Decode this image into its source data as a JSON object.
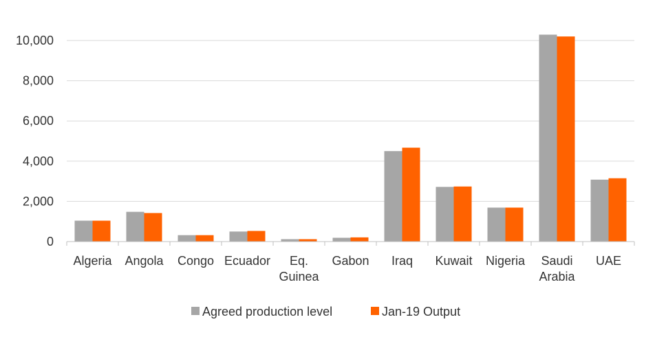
{
  "chart_data": {
    "type": "bar",
    "title": "",
    "xlabel": "",
    "ylabel": "",
    "categories": [
      [
        "Algeria"
      ],
      [
        "Angola"
      ],
      [
        "Congo"
      ],
      [
        "Ecuador"
      ],
      [
        "Eq.",
        "Guinea"
      ],
      [
        "Gabon"
      ],
      [
        "Iraq"
      ],
      [
        "Kuwait"
      ],
      [
        "Nigeria"
      ],
      [
        "Saudi",
        "Arabia"
      ],
      [
        "UAE"
      ]
    ],
    "series": [
      {
        "name": "Agreed production level",
        "color": "#a6a6a6",
        "values": [
          1040,
          1480,
          320,
          500,
          120,
          190,
          4500,
          2720,
          1690,
          10290,
          3080
        ]
      },
      {
        "name": "Jan-19 Output",
        "color": "#ff6200",
        "values": [
          1040,
          1420,
          320,
          530,
          120,
          210,
          4670,
          2740,
          1690,
          10200,
          3150
        ]
      }
    ],
    "ylim": [
      0,
      10000
    ],
    "yticks": [
      "0",
      "2,000",
      "4,000",
      "6,000",
      "8,000",
      "10,000"
    ],
    "ytick_values": [
      0,
      2000,
      4000,
      6000,
      8000,
      10000
    ],
    "grid": "horizontal",
    "legend_position": "bottom"
  }
}
